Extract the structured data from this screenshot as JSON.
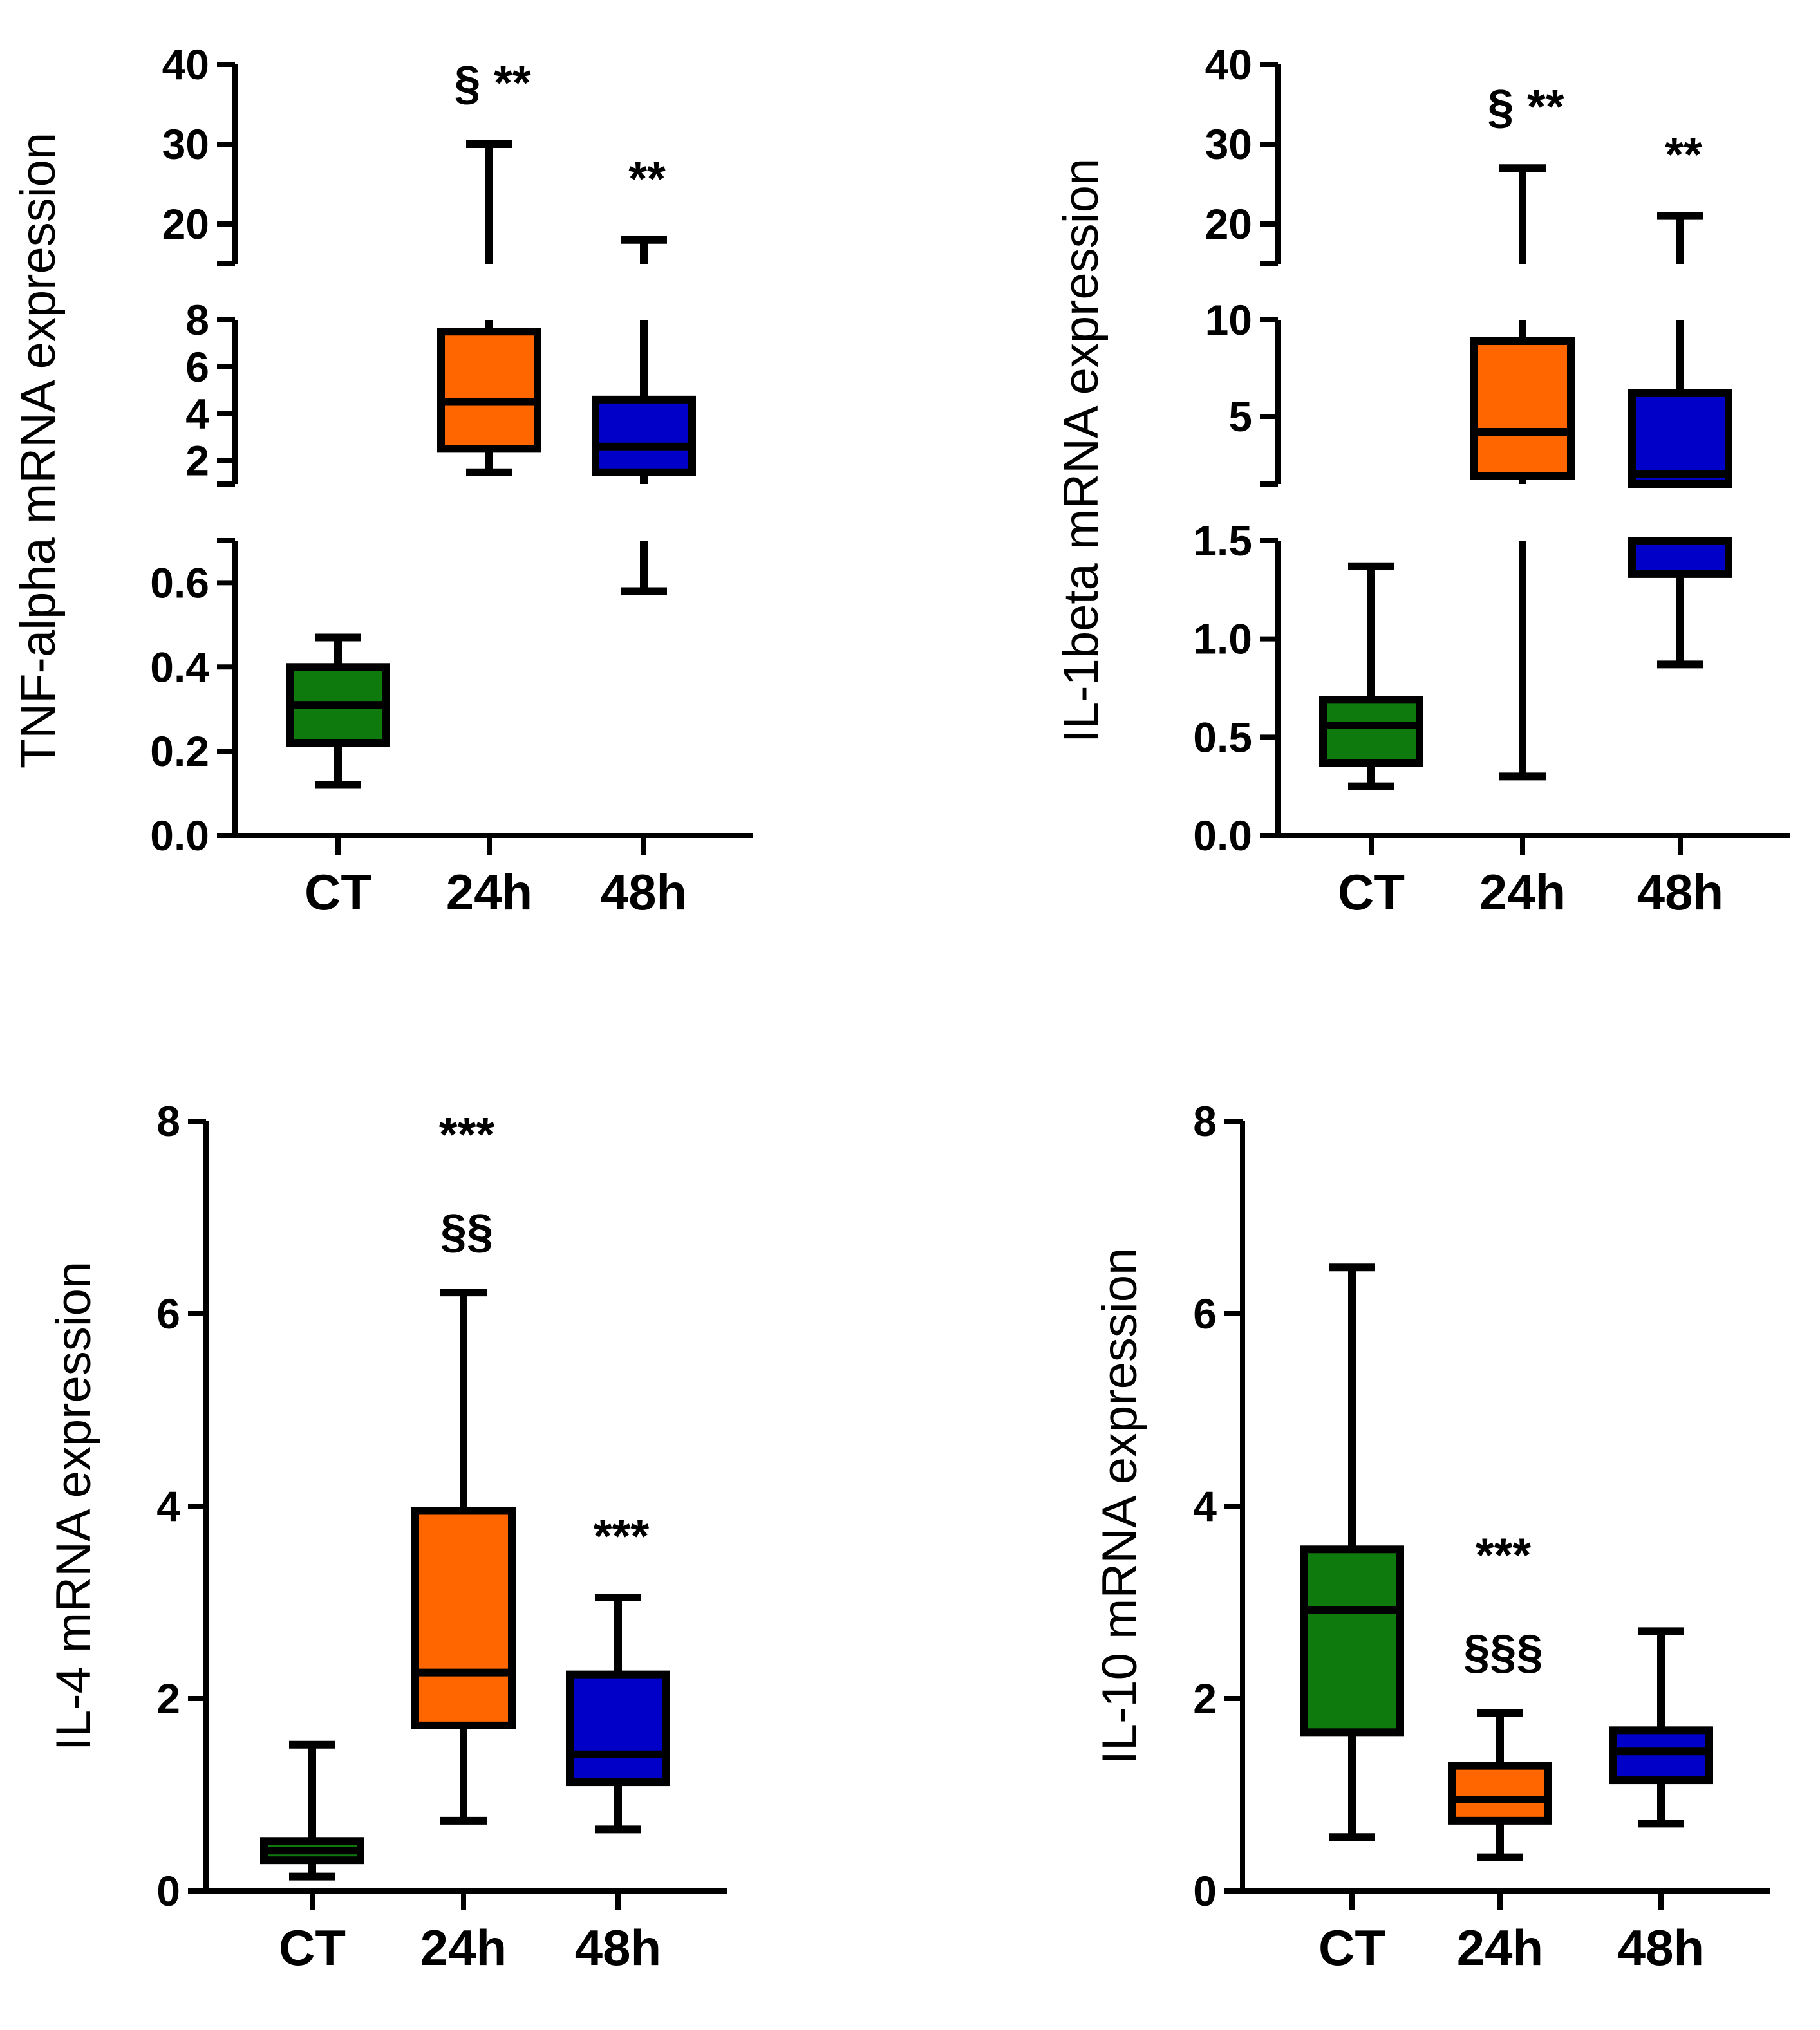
{
  "chart_data": [
    {
      "type": "box",
      "ylabel": "TNF-alpha mRNA expression",
      "categories": [
        "CT",
        "24h",
        "48h"
      ],
      "y_axis_breaks": true,
      "y_segments": [
        {
          "range": [
            0,
            0.7
          ],
          "ticks": [
            "0.0",
            "0.2",
            "0.4",
            "0.6"
          ]
        },
        {
          "range": [
            1,
            8
          ],
          "ticks": [
            "2",
            "4",
            "6",
            "8"
          ]
        },
        {
          "range": [
            15,
            40
          ],
          "ticks": [
            "20",
            "30",
            "40"
          ]
        }
      ],
      "boxes": [
        {
          "category": "CT",
          "min": 0.12,
          "q1": 0.22,
          "median": 0.31,
          "q3": 0.4,
          "max": 0.47,
          "color": "#0e7a0d"
        },
        {
          "category": "24h",
          "min": 1.5,
          "q1": 2.5,
          "median": 4.5,
          "q3": 7.5,
          "max": 30,
          "color": "#ff6600"
        },
        {
          "category": "48h",
          "min": 0.58,
          "q1": 1.5,
          "median": 2.6,
          "q3": 4.6,
          "max": 18,
          "color": "#0000c8"
        }
      ],
      "annotations": [
        {
          "category": "24h",
          "lines": [
            "§ **"
          ]
        },
        {
          "category": "48h",
          "lines": [
            "**"
          ]
        }
      ]
    },
    {
      "type": "box",
      "ylabel": "IL-1beta mRNA expression",
      "categories": [
        "CT",
        "24h",
        "48h"
      ],
      "y_axis_breaks": true,
      "y_segments": [
        {
          "range": [
            0,
            1.5
          ],
          "ticks": [
            "0.0",
            "0.5",
            "1.0",
            "1.5"
          ]
        },
        {
          "range": [
            1.5,
            10
          ],
          "ticks": [
            "5",
            "10"
          ]
        },
        {
          "range": [
            15,
            40
          ],
          "ticks": [
            "20",
            "30",
            "40"
          ]
        }
      ],
      "boxes": [
        {
          "category": "CT",
          "min": 0.25,
          "q1": 0.37,
          "median": 0.56,
          "q3": 0.69,
          "max": 1.37,
          "color": "#0e7a0d"
        },
        {
          "category": "24h",
          "min": 0.3,
          "q1": 1.9,
          "median": 4.2,
          "q3": 8.9,
          "max": 27,
          "color": "#ff6600"
        },
        {
          "category": "48h",
          "min": 0.87,
          "q1": 1.33,
          "median": 2,
          "q3": 6.2,
          "max": 21,
          "color": "#0000c8"
        }
      ],
      "annotations": [
        {
          "category": "24h",
          "lines": [
            "§ **"
          ]
        },
        {
          "category": "48h",
          "lines": [
            "**"
          ]
        }
      ]
    },
    {
      "type": "box",
      "ylabel": "IL-4 mRNA expression",
      "categories": [
        "CT",
        "24h",
        "48h"
      ],
      "ylim": [
        0,
        8
      ],
      "ticks": [
        "0",
        "2",
        "4",
        "6",
        "8"
      ],
      "boxes": [
        {
          "category": "CT",
          "min": 0.15,
          "q1": 0.32,
          "median": 0.42,
          "q3": 0.52,
          "max": 1.52,
          "color": "#0e7a0d"
        },
        {
          "category": "24h",
          "min": 0.73,
          "q1": 1.72,
          "median": 2.27,
          "q3": 3.95,
          "max": 6.22,
          "color": "#ff6600"
        },
        {
          "category": "48h",
          "min": 0.64,
          "q1": 1.13,
          "median": 1.42,
          "q3": 2.25,
          "max": 3.05,
          "color": "#0000c8"
        }
      ],
      "annotations": [
        {
          "category": "24h",
          "lines": [
            "***",
            "§§"
          ]
        },
        {
          "category": "48h",
          "lines": [
            "***"
          ]
        }
      ]
    },
    {
      "type": "box",
      "ylabel": "IL-10 mRNA expression",
      "categories": [
        "CT",
        "24h",
        "48h"
      ],
      "ylim": [
        0,
        8
      ],
      "ticks": [
        "0",
        "2",
        "4",
        "6",
        "8"
      ],
      "boxes": [
        {
          "category": "CT",
          "min": 0.56,
          "q1": 1.65,
          "median": 2.92,
          "q3": 3.55,
          "max": 6.48,
          "color": "#0e7a0d"
        },
        {
          "category": "24h",
          "min": 0.35,
          "q1": 0.73,
          "median": 0.95,
          "q3": 1.3,
          "max": 1.85,
          "color": "#ff6600"
        },
        {
          "category": "48h",
          "min": 0.7,
          "q1": 1.15,
          "median": 1.45,
          "q3": 1.67,
          "max": 2.7,
          "color": "#0000c8"
        }
      ],
      "annotations": [
        {
          "category": "24h",
          "lines": [
            "***",
            "§§§"
          ]
        }
      ]
    }
  ]
}
